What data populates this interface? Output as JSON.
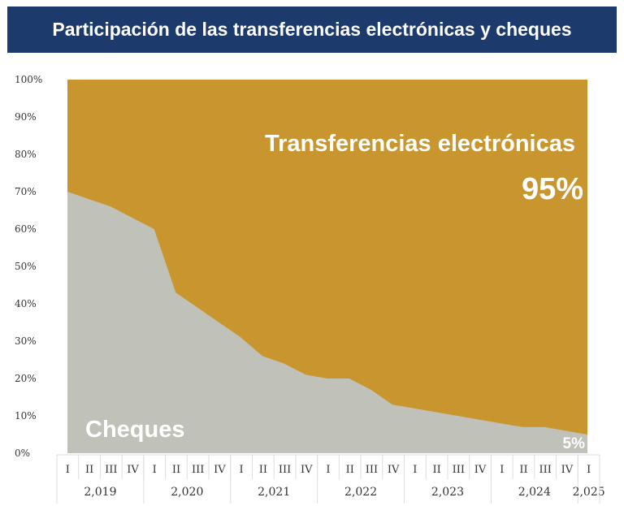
{
  "chart_data": {
    "type": "area",
    "stacked": true,
    "percent": true,
    "title": "Participación de las transferencias electrónicas y cheques",
    "ylim": [
      0,
      100
    ],
    "yticks": [
      "0%",
      "10%",
      "20%",
      "30%",
      "40%",
      "50%",
      "60%",
      "70%",
      "80%",
      "90%",
      "100%"
    ],
    "quarters": [
      "I",
      "II",
      "III",
      "IV",
      "I",
      "II",
      "III",
      "IV",
      "I",
      "II",
      "III",
      "IV",
      "I",
      "II",
      "III",
      "IV",
      "I",
      "II",
      "III",
      "IV",
      "I",
      "II",
      "III",
      "IV",
      "I"
    ],
    "years": [
      {
        "label": "2,019",
        "quarters": 4
      },
      {
        "label": "2,020",
        "quarters": 4
      },
      {
        "label": "2,021",
        "quarters": 4
      },
      {
        "label": "2,022",
        "quarters": 4
      },
      {
        "label": "2,023",
        "quarters": 4
      },
      {
        "label": "2,024",
        "quarters": 4
      },
      {
        "label": "2,025",
        "quarters": 1
      }
    ],
    "series": [
      {
        "name": "Cheques",
        "color": "#c0c1b8",
        "values": [
          70,
          68,
          66,
          63,
          60,
          43,
          39,
          35,
          31,
          26,
          24,
          21,
          20,
          20,
          17,
          13,
          12,
          11,
          10,
          9,
          8,
          7,
          7,
          6,
          5
        ]
      },
      {
        "name": "Transferencias electrónicas",
        "color": "#c8952f",
        "values": [
          30,
          32,
          34,
          37,
          40,
          57,
          61,
          65,
          69,
          74,
          76,
          79,
          80,
          80,
          83,
          87,
          88,
          89,
          90,
          91,
          92,
          93,
          93,
          94,
          95
        ]
      }
    ],
    "annotations": {
      "transfer_label": "Transferencias electrónicas",
      "transfer_value": "95%",
      "cheques_label": "Cheques",
      "cheques_value": "5%"
    }
  },
  "colors": {
    "title_bg": "#1c3a6b"
  }
}
